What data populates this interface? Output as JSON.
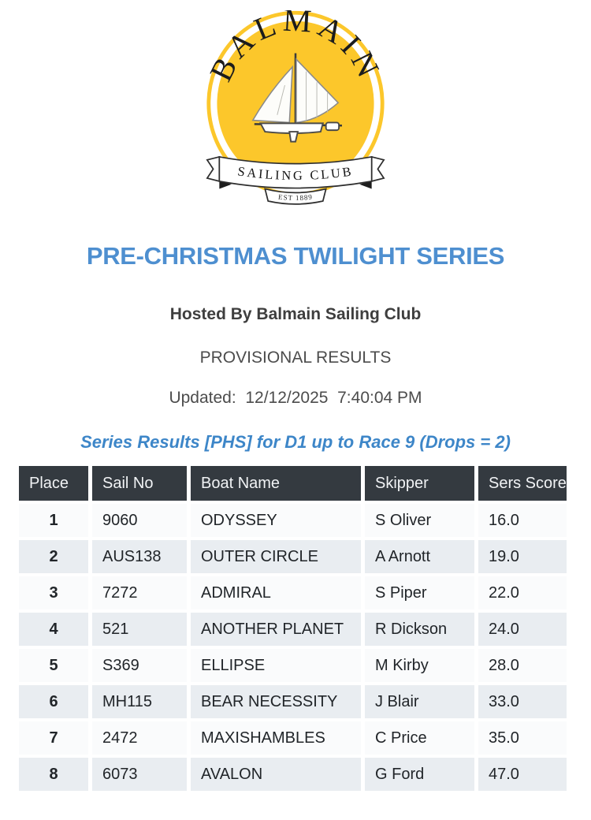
{
  "colors": {
    "accent": "#4e8fd0",
    "series-blue": "#3d86c8",
    "logo-yellow": "#fcc72b",
    "table-header-bg": "#343a40",
    "row-odd": "#fafbfc",
    "row-even": "#e9edf1"
  },
  "logo": {
    "club_name_arc": "BALMAIN",
    "banner": "SAILING CLUB",
    "established": "EST 1889"
  },
  "header": {
    "title": "PRE-CHRISTMAS TWILIGHT SERIES",
    "hosted_by": "Hosted By Balmain Sailing Club",
    "status": "PROVISIONAL RESULTS",
    "updated_line": "Updated:  12/12/2025  7:40:04 PM",
    "series_heading": "Series Results [PHS] for D1 up to Race 9 (Drops = 2)"
  },
  "table": {
    "columns": [
      "Place",
      "Sail No",
      "Boat Name",
      "Skipper",
      "Sers Score"
    ],
    "column_keys": [
      "place",
      "sail-no",
      "boat-name",
      "skipper",
      "sers-score"
    ],
    "rows": [
      [
        "1",
        "9060",
        "ODYSSEY",
        "S Oliver",
        "16.0"
      ],
      [
        "2",
        "AUS138",
        "OUTER CIRCLE",
        "A Arnott",
        "19.0"
      ],
      [
        "3",
        "7272",
        "ADMIRAL",
        "S Piper",
        "22.0"
      ],
      [
        "4",
        "521",
        "ANOTHER PLANET",
        "R Dickson",
        "24.0"
      ],
      [
        "5",
        "S369",
        "ELLIPSE",
        "M Kirby",
        "28.0"
      ],
      [
        "6",
        "MH115",
        "BEAR NECESSITY",
        "J Blair",
        "33.0"
      ],
      [
        "7",
        "2472",
        "MAXISHAMBLES",
        "C Price",
        "35.0"
      ],
      [
        "8",
        "6073",
        "AVALON",
        "G Ford",
        "47.0"
      ]
    ]
  }
}
